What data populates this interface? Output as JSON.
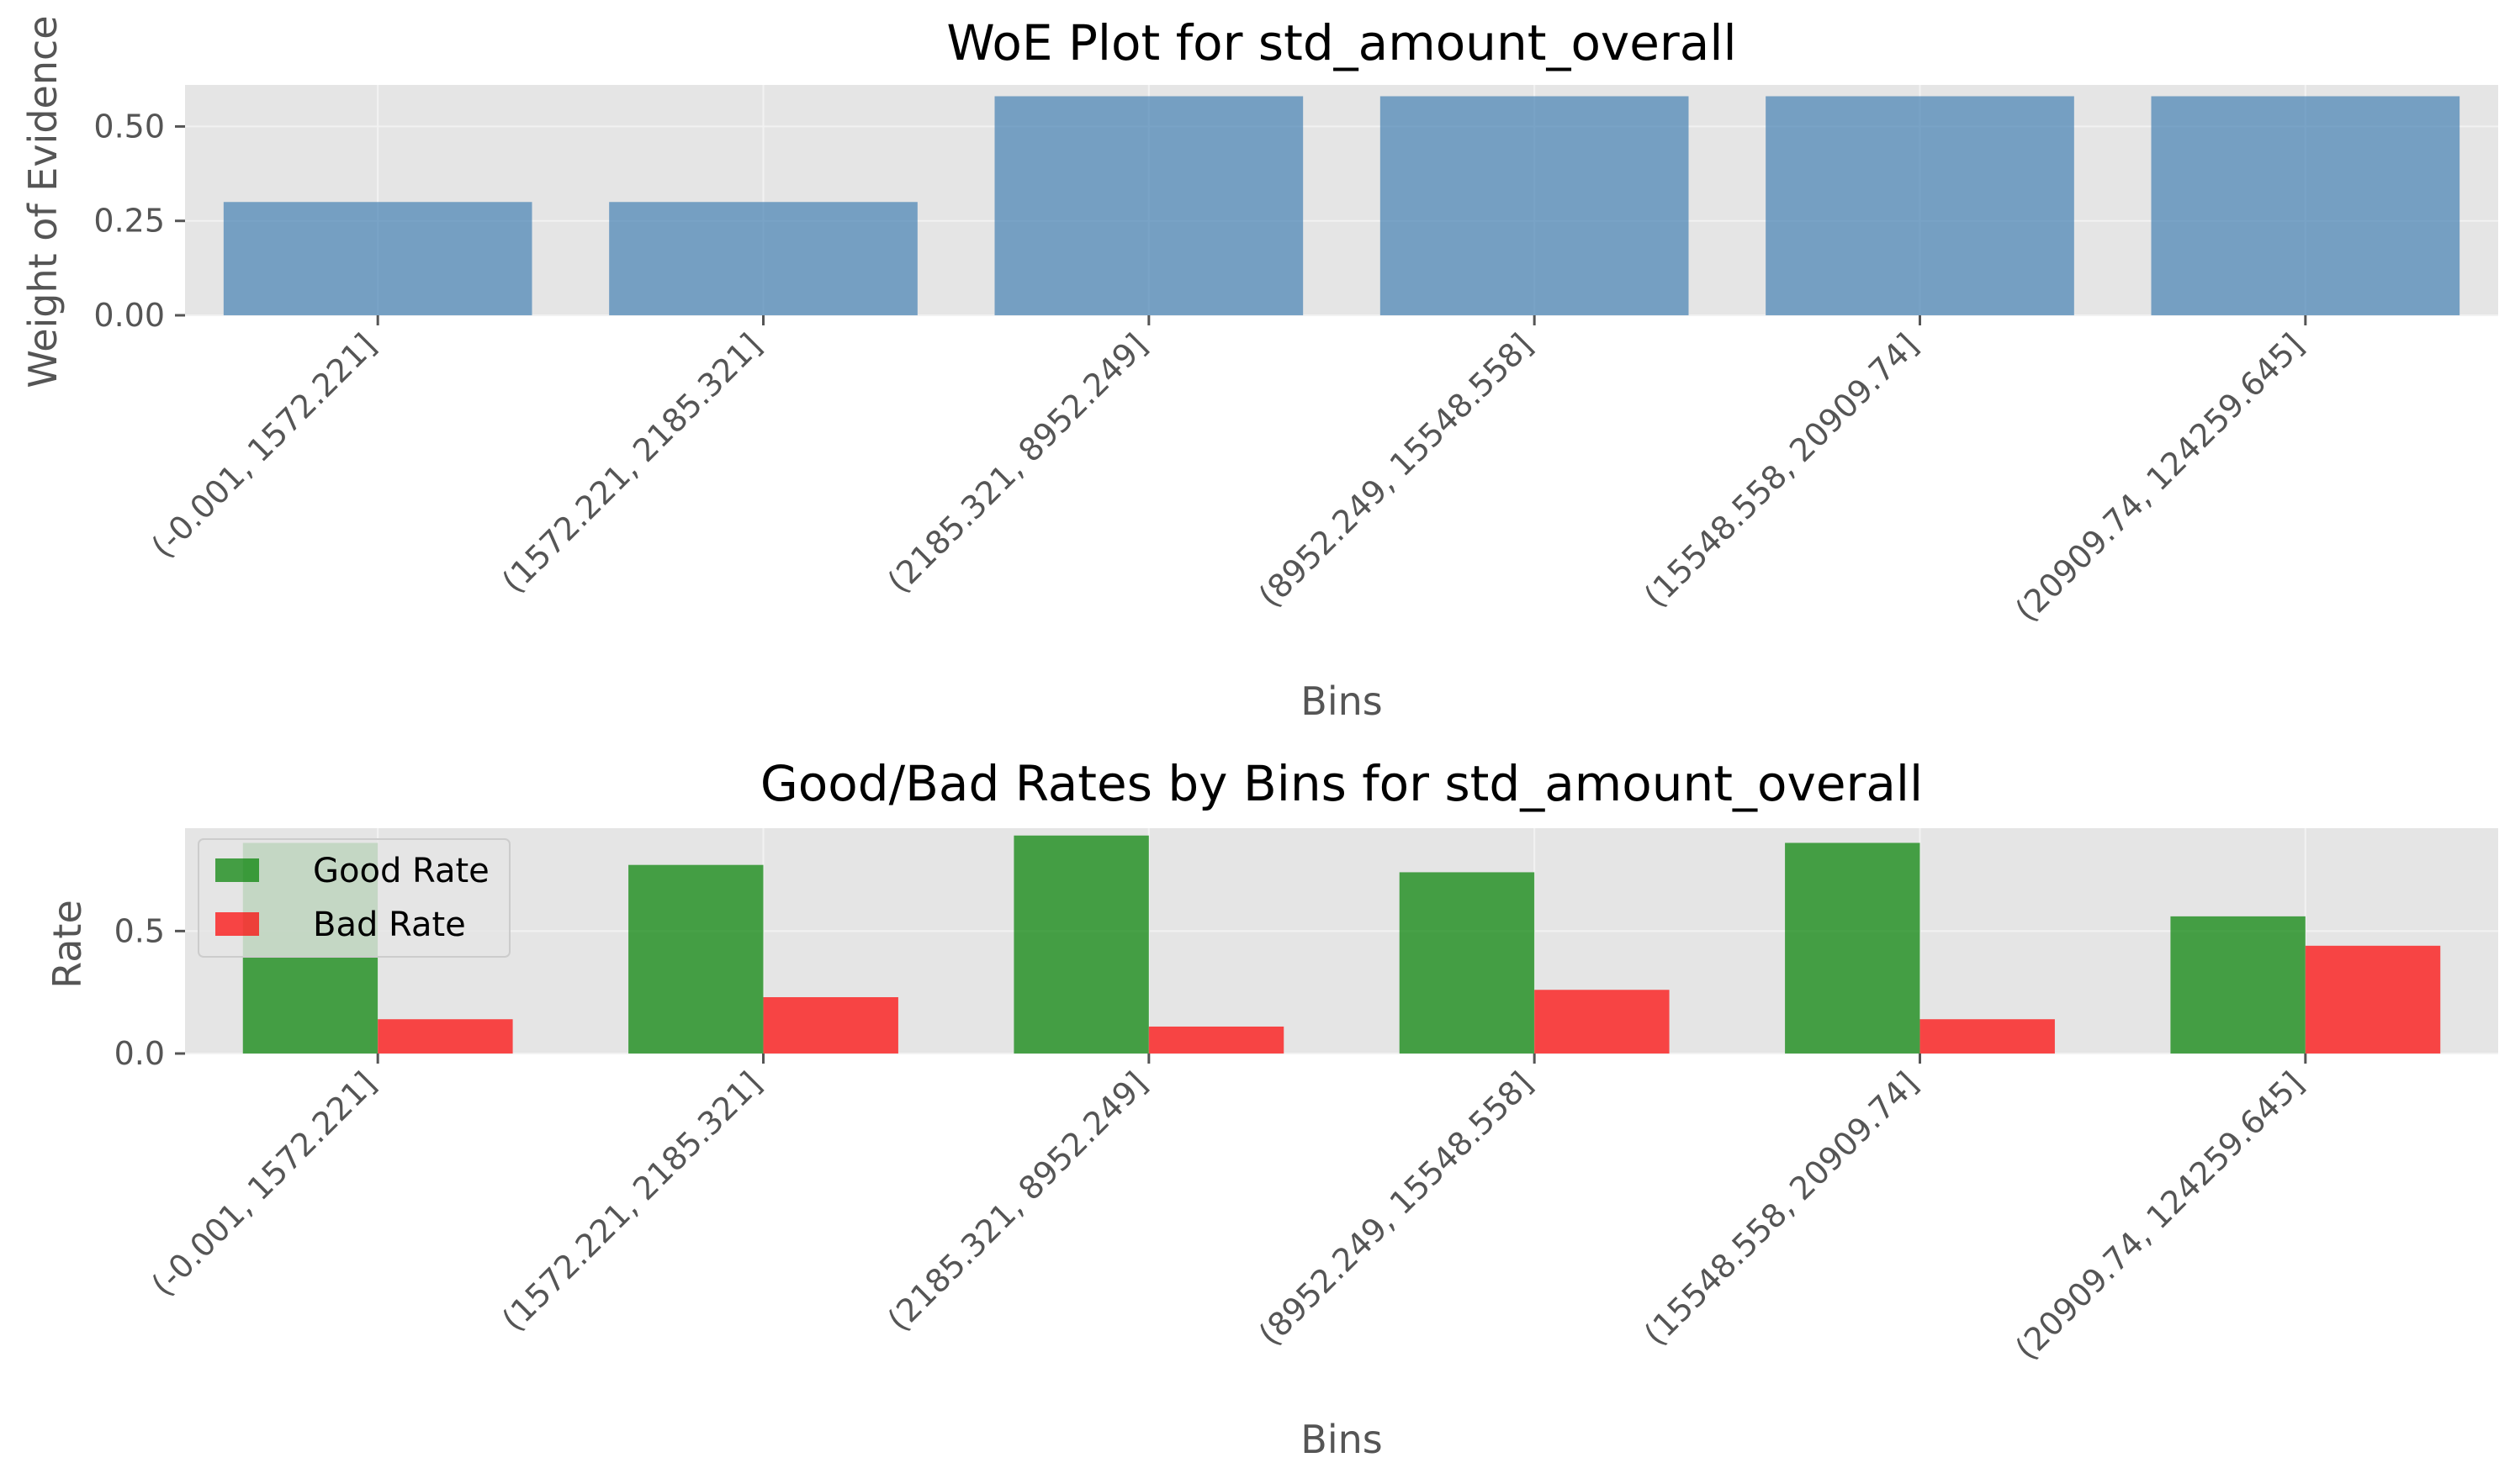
{
  "colors": {
    "background": "#ffffff",
    "axes_face": "#e5e5e5",
    "grid": "#f2f2f2",
    "woe_bar": "#4682b4",
    "good_bar": "#008000",
    "bad_bar": "#ff0000",
    "text": "#555555",
    "title": "#000000"
  },
  "chart_data": [
    {
      "type": "bar",
      "title": "WoE Plot for std_amount_overall",
      "xlabel": "Bins",
      "ylabel": "Weight of Evidence",
      "categories": [
        "(-0.001, 1572.221]",
        "(1572.221, 2185.321]",
        "(2185.321, 8952.249]",
        "(8952.249, 15548.558]",
        "(15548.558, 20909.74]",
        "(20909.74, 124259.645]"
      ],
      "values": [
        0.3,
        0.3,
        0.58,
        0.58,
        0.58,
        0.58
      ],
      "yticks": [
        "0.00",
        "0.25",
        "0.50"
      ],
      "ylim": [
        0,
        0.61
      ],
      "grid": true,
      "legend": false
    },
    {
      "type": "bar",
      "title": "Good/Bad Rates by Bins for std_amount_overall",
      "xlabel": "Bins",
      "ylabel": "Rate",
      "categories": [
        "(-0.001, 1572.221]",
        "(1572.221, 2185.321]",
        "(2185.321, 8952.249]",
        "(8952.249, 15548.558]",
        "(15548.558, 20909.74]",
        "(20909.74, 124259.645]"
      ],
      "series": [
        {
          "name": "Good Rate",
          "values": [
            0.86,
            0.77,
            0.89,
            0.74,
            0.86,
            0.56
          ]
        },
        {
          "name": "Bad Rate",
          "values": [
            0.14,
            0.23,
            0.11,
            0.26,
            0.14,
            0.44
          ]
        }
      ],
      "yticks": [
        "0.0",
        "0.5"
      ],
      "ylim": [
        0,
        0.92
      ],
      "grid": true,
      "legend": "upper-left"
    }
  ]
}
